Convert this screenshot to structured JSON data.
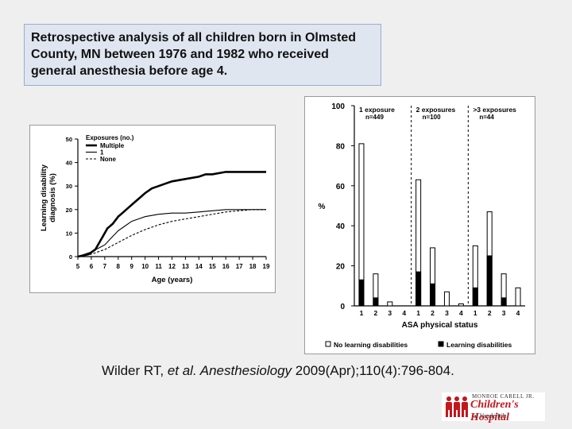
{
  "caption": "Retrospective analysis of all children born in Olmsted County, MN between 1976 and 1982 who received general anesthesia before age 4.",
  "citation": {
    "authors": "Wilder RT, ",
    "etal": "et al. Anesthesiology",
    "rest": " 2009(Apr);110(4):796-804."
  },
  "logo": {
    "line1": "MONROE CARELL JR.",
    "line2": "Children's Hospital",
    "line3": "at Vanderbilt"
  },
  "chart_data": [
    {
      "type": "line",
      "title": "",
      "xlabel": "Age (years)",
      "ylabel": "Learning disability diagnosis (%)",
      "xlim": [
        5,
        19
      ],
      "ylim": [
        0,
        50
      ],
      "x_ticks": [
        "5",
        "6",
        "7",
        "8",
        "9",
        "10",
        "11",
        "12",
        "13",
        "14",
        "15",
        "16",
        "17",
        "18",
        "19"
      ],
      "y_ticks": [
        "0",
        "10",
        "20",
        "30",
        "40",
        "50"
      ],
      "legend": {
        "title": "Exposures (no.)",
        "placement": "top-left"
      },
      "series": [
        {
          "name": "Multiple",
          "style": "thick",
          "x": [
            5,
            5.8,
            6.3,
            6.8,
            7.2,
            7.6,
            8,
            8.4,
            8.8,
            9.2,
            9.6,
            10,
            10.5,
            11,
            11.5,
            12,
            13,
            14,
            14.5,
            15,
            16,
            17,
            18,
            19
          ],
          "y": [
            0,
            1,
            3,
            8,
            12,
            14,
            17,
            19,
            21,
            23,
            25,
            27,
            29,
            30,
            31,
            32,
            33,
            34,
            35,
            35,
            36,
            36,
            36,
            36
          ]
        },
        {
          "name": "1",
          "style": "solid",
          "x": [
            5,
            6,
            7,
            7.5,
            8,
            8.5,
            9,
            9.5,
            10,
            10.5,
            11,
            12,
            13,
            14,
            15,
            16,
            17,
            18,
            19
          ],
          "y": [
            0,
            2,
            5,
            8,
            11,
            13,
            15,
            16,
            17,
            17.5,
            18,
            18.5,
            18.5,
            19,
            19.5,
            20,
            20,
            20,
            20
          ]
        },
        {
          "name": "None",
          "style": "dashed",
          "x": [
            5,
            6,
            7,
            8,
            9,
            10,
            11,
            12,
            13,
            14,
            15,
            16,
            17,
            18,
            19
          ],
          "y": [
            0,
            1,
            3,
            6,
            9,
            11.5,
            13.5,
            15,
            16,
            17,
            18,
            19,
            19.5,
            20,
            20
          ]
        }
      ]
    },
    {
      "type": "bar",
      "stacked": true,
      "xlabel": "ASA physical status",
      "ylabel": "%",
      "ylim": [
        0,
        100
      ],
      "y_ticks": [
        "0",
        "20",
        "40",
        "60",
        "80",
        "100"
      ],
      "legend": {
        "placement": "bottom"
      },
      "legend_entries": [
        "No learning disabilities",
        "Learning disabilities"
      ],
      "groups": [
        {
          "label": "1 exposure",
          "n": "n=449",
          "categories": [
            "1",
            "2",
            "3",
            "4"
          ],
          "learning": [
            13,
            4,
            0,
            0
          ],
          "total": [
            81,
            16,
            2,
            0
          ]
        },
        {
          "label": "2 exposures",
          "n": "n=100",
          "categories": [
            "1",
            "2",
            "3",
            "4"
          ],
          "learning": [
            17,
            11,
            0,
            0
          ],
          "total": [
            63,
            29,
            7,
            1
          ]
        },
        {
          "label": ">3 exposures",
          "n": "n=44",
          "categories": [
            "1",
            "2",
            "3",
            "4"
          ],
          "learning": [
            9,
            25,
            4,
            0
          ],
          "total": [
            30,
            47,
            16,
            9
          ]
        }
      ]
    }
  ]
}
